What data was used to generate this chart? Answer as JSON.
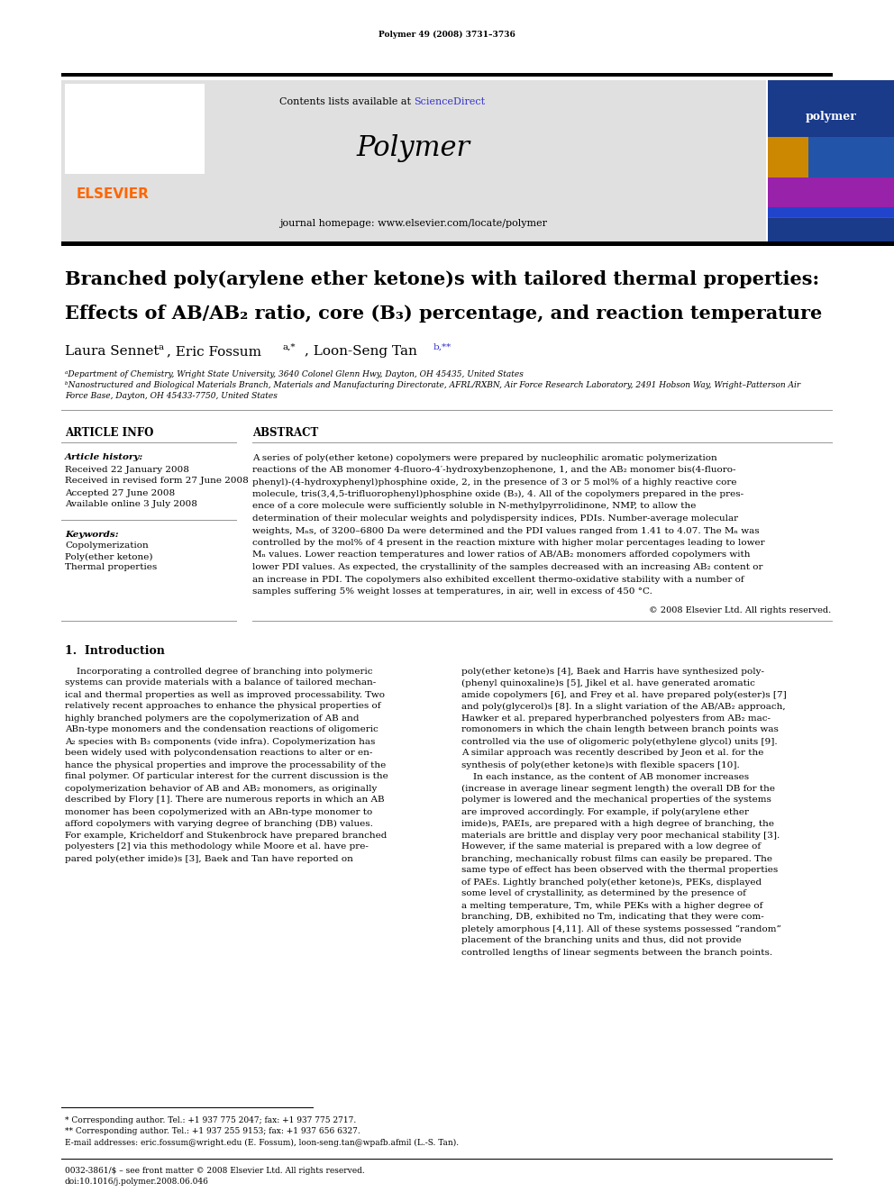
{
  "page_width": 9.92,
  "page_height": 13.23,
  "dpi": 100,
  "bg_color": "#ffffff",
  "header_journal": "Polymer 49 (2008) 3731–3736",
  "journal_title": "Polymer",
  "journal_homepage": "journal homepage: www.elsevier.com/locate/polymer",
  "contents_pre": "Contents lists available at ",
  "contents_link": "ScienceDirect",
  "sciencedirect_color": "#3333cc",
  "elsevier_color": "#ff6600",
  "elsevier_text": "ELSEVIER",
  "cover_text": "polymer",
  "cover_bg": "#1a3a8a",
  "header_bg": "#e0e0e0",
  "paper_title_line1": "Branched poly(arylene ether ketone)s with tailored thermal properties:",
  "paper_title_line2": "Effects of AB/AB₂ ratio, core (B₃) percentage, and reaction temperature",
  "author_main": "Laura Sennet ",
  "author_sup1": "a",
  "author_mid1": ", Eric Fossum ",
  "author_sup2": "a,*",
  "author_mid2": ", Loon-Seng Tan ",
  "author_sup3": "b,**",
  "affil_a": "ᵃDepartment of Chemistry, Wright State University, 3640 Colonel Glenn Hwy, Dayton, OH 45435, United States",
  "affil_b1": "ᵇNanostructured and Biological Materials Branch, Materials and Manufacturing Directorate, AFRL/RXBN, Air Force Research Laboratory, 2491 Hobson Way, Wright–Patterson Air",
  "affil_b2": "Force Base, Dayton, OH 45433-7750, United States",
  "sec_info": "ARTICLE INFO",
  "sec_abstract": "ABSTRACT",
  "art_hist_label": "Article history:",
  "received": "Received 22 January 2008",
  "revised": "Received in revised form 27 June 2008",
  "accepted": "Accepted 27 June 2008",
  "available": "Available online 3 July 2008",
  "kw_label": "Keywords:",
  "kw1": "Copolymerization",
  "kw2": "Poly(ether ketone)",
  "kw3": "Thermal properties",
  "abstract_lines": [
    "A series of poly(ether ketone) copolymers were prepared by nucleophilic aromatic polymerization",
    "reactions of the AB monomer 4-fluoro-4′-hydroxybenzophenone, 1, and the AB₂ monomer bis(4-fluoro-",
    "phenyl)-(4-hydroxyphenyl)phosphine oxide, 2, in the presence of 3 or 5 mol% of a highly reactive core",
    "molecule, tris(3,4,5-trifluorophenyl)phosphine oxide (B₃), 4. All of the copolymers prepared in the pres-",
    "ence of a core molecule were sufficiently soluble in N-methylpyrrolidinone, NMP, to allow the",
    "determination of their molecular weights and polydispersity indices, PDIs. Number-average molecular",
    "weights, Mₙs, of 3200–6800 Da were determined and the PDI values ranged from 1.41 to 4.07. The Mₙ was",
    "controlled by the mol% of 4 present in the reaction mixture with higher molar percentages leading to lower",
    "Mₙ values. Lower reaction temperatures and lower ratios of AB/AB₂ monomers afforded copolymers with",
    "lower PDI values. As expected, the crystallinity of the samples decreased with an increasing AB₂ content or",
    "an increase in PDI. The copolymers also exhibited excellent thermo-oxidative stability with a number of",
    "samples suffering 5% weight losses at temperatures, in air, well in excess of 450 °C."
  ],
  "copyright_abstract": "© 2008 Elsevier Ltd. All rights reserved.",
  "sec1_title": "1.  Introduction",
  "intro1_lines": [
    "    Incorporating a controlled degree of branching into polymeric",
    "systems can provide materials with a balance of tailored mechan-",
    "ical and thermal properties as well as improved processability. Two",
    "relatively recent approaches to enhance the physical properties of",
    "highly branched polymers are the copolymerization of AB and",
    "ABn-type monomers and the condensation reactions of oligomeric",
    "A₂ species with B₃ components (vide infra). Copolymerization has",
    "been widely used with polycondensation reactions to alter or en-",
    "hance the physical properties and improve the processability of the",
    "final polymer. Of particular interest for the current discussion is the",
    "copolymerization behavior of AB and AB₂ monomers, as originally",
    "described by Flory [1]. There are numerous reports in which an AB",
    "monomer has been copolymerized with an ABn-type monomer to",
    "afford copolymers with varying degree of branching (DB) values.",
    "For example, Kricheldorf and Stukenbrock have prepared branched",
    "polyesters [2] via this methodology while Moore et al. have pre-",
    "pared poly(ether imide)s [3], Baek and Tan have reported on"
  ],
  "intro2_lines": [
    "poly(ether ketone)s [4], Baek and Harris have synthesized poly-",
    "(phenyl quinoxaline)s [5], Jikel et al. have generated aromatic",
    "amide copolymers [6], and Frey et al. have prepared poly(ester)s [7]",
    "and poly(glycerol)s [8]. In a slight variation of the AB/AB₂ approach,",
    "Hawker et al. prepared hyperbranched polyesters from AB₂ mac-",
    "romonomers in which the chain length between branch points was",
    "controlled via the use of oligomeric poly(ethylene glycol) units [9].",
    "A similar approach was recently described by Jeon et al. for the",
    "synthesis of poly(ether ketone)s with flexible spacers [10].",
    "    In each instance, as the content of AB monomer increases",
    "(increase in average linear segment length) the overall DB for the",
    "polymer is lowered and the mechanical properties of the systems",
    "are improved accordingly. For example, if poly(arylene ether",
    "imide)s, PAEIs, are prepared with a high degree of branching, the",
    "materials are brittle and display very poor mechanical stability [3].",
    "However, if the same material is prepared with a low degree of",
    "branching, mechanically robust films can easily be prepared. The",
    "same type of effect has been observed with the thermal properties",
    "of PAEs. Lightly branched poly(ether ketone)s, PEKs, displayed",
    "some level of crystallinity, as determined by the presence of",
    "a melting temperature, Tm, while PEKs with a higher degree of",
    "branching, DB, exhibited no Tm, indicating that they were com-",
    "pletely amorphous [4,11]. All of these systems possessed “random”",
    "placement of the branching units and thus, did not provide",
    "controlled lengths of linear segments between the branch points."
  ],
  "fn1": "* Corresponding author. Tel.: +1 937 775 2047; fax: +1 937 775 2717.",
  "fn2": "** Corresponding author. Tel.: +1 937 255 9153; fax: +1 937 656 6327.",
  "fn3": "E-mail addresses: eric.fossum@wright.edu (E. Fossum), loon-seng.tan@wpafb.afmil (L.-S. Tan).",
  "copy_bottom": "0032-3861/$ – see front matter © 2008 Elsevier Ltd. All rights reserved.",
  "doi_bottom": "doi:10.1016/j.polymer.2008.06.046"
}
